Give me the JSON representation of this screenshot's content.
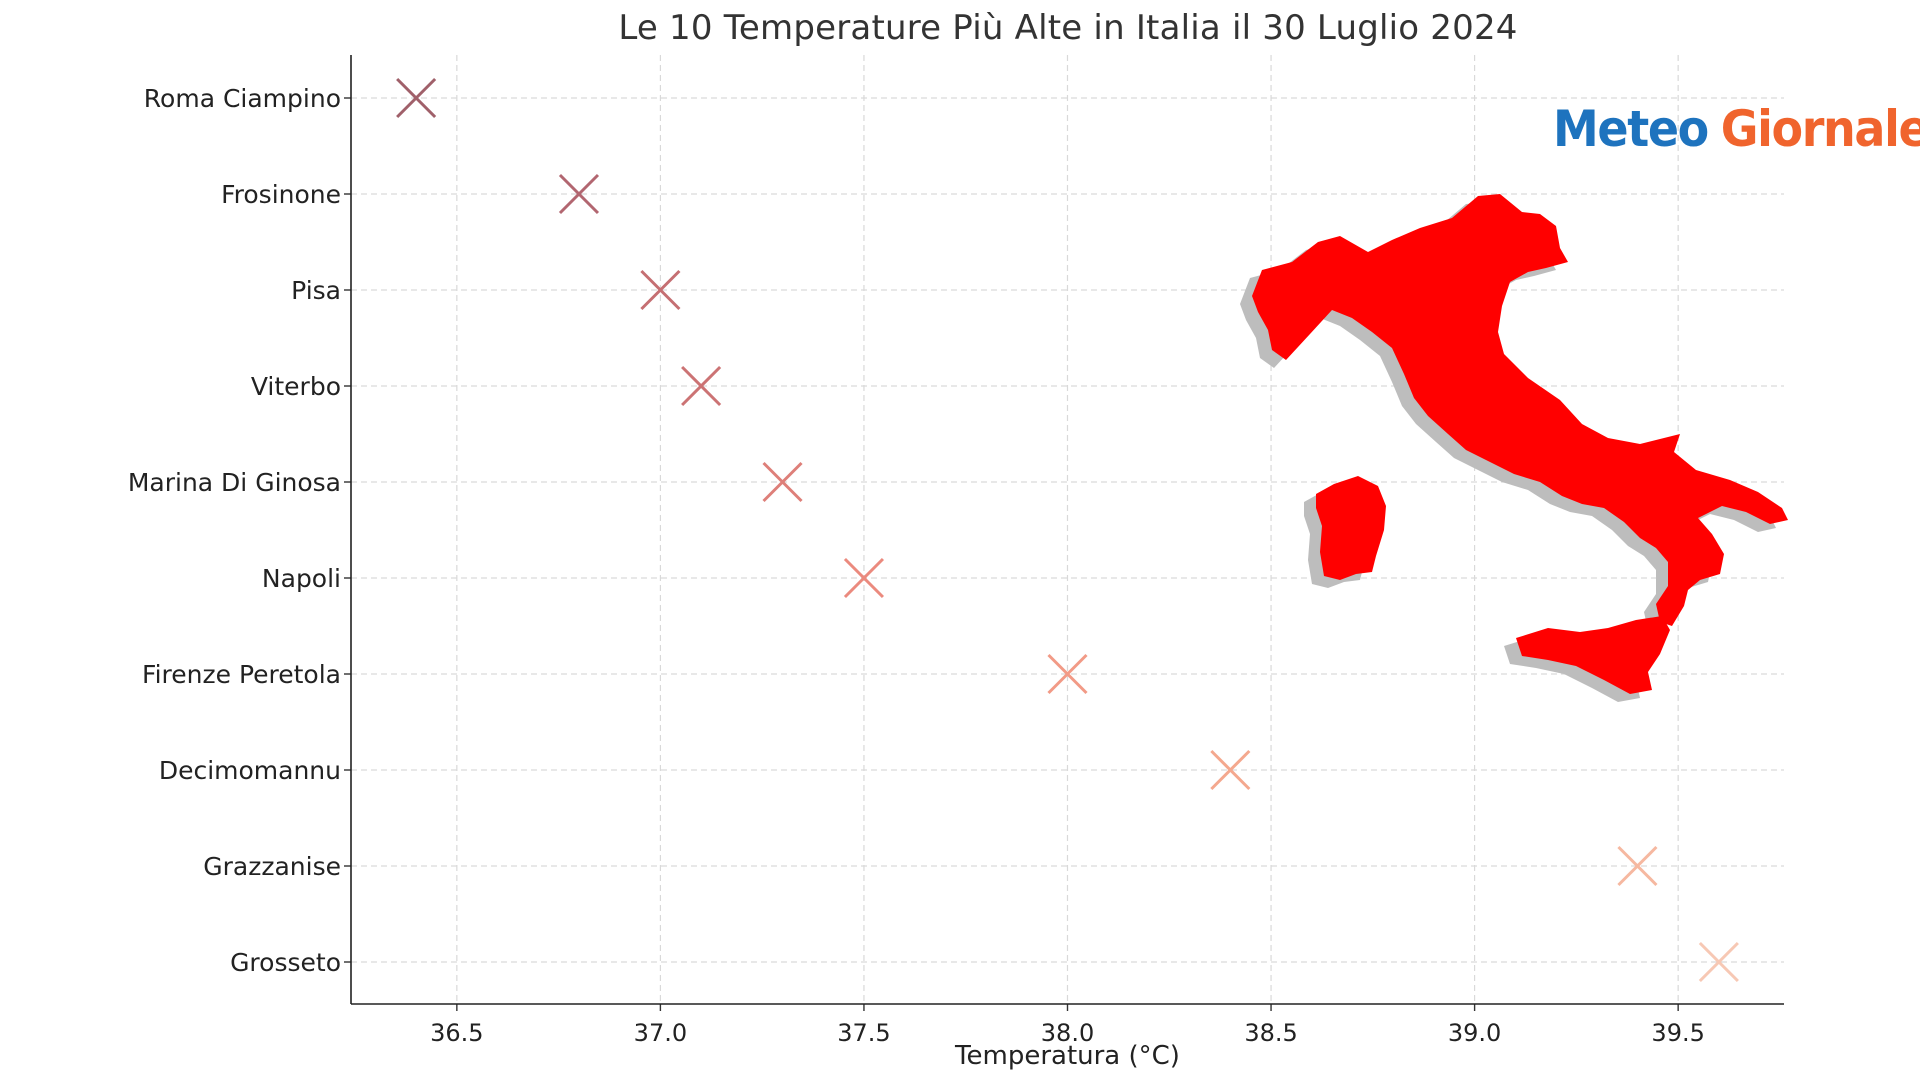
{
  "chart_data": {
    "type": "scatter",
    "title": "Le 10 Temperature Più Alte in Italia il 30 Luglio 2024",
    "xlabel": "Temperatura (°C)",
    "ylabel": "",
    "xlim": [
      36.24,
      39.76
    ],
    "xticks": [
      "36.5",
      "37.0",
      "37.5",
      "38.0",
      "38.5",
      "39.0",
      "39.5"
    ],
    "grid": true,
    "marker": "x",
    "categories": [
      "Roma Ciampino",
      "Frosinone",
      "Pisa",
      "Viterbo",
      "Marina Di Ginosa",
      "Napoli",
      "Firenze Peretola",
      "Decimomannu",
      "Grazzanise",
      "Grosseto"
    ],
    "values": [
      36.4,
      36.8,
      37.0,
      37.1,
      37.3,
      37.5,
      38.0,
      38.4,
      39.4,
      39.6
    ],
    "colors": [
      "#a0606a",
      "#b26670",
      "#c56f72",
      "#cc7374",
      "#de7f79",
      "#eb8a7e",
      "#f29a86",
      "#f4a88e",
      "#f6b8a0",
      "#f7c8b4"
    ]
  },
  "overlay": {
    "brand_part1": "Meteo",
    "brand_part2": "Giornale",
    "brand_color1": "#1e73be",
    "brand_color2": "#f0642d",
    "map_label": "Italy map",
    "map_color": "#ff0000"
  }
}
